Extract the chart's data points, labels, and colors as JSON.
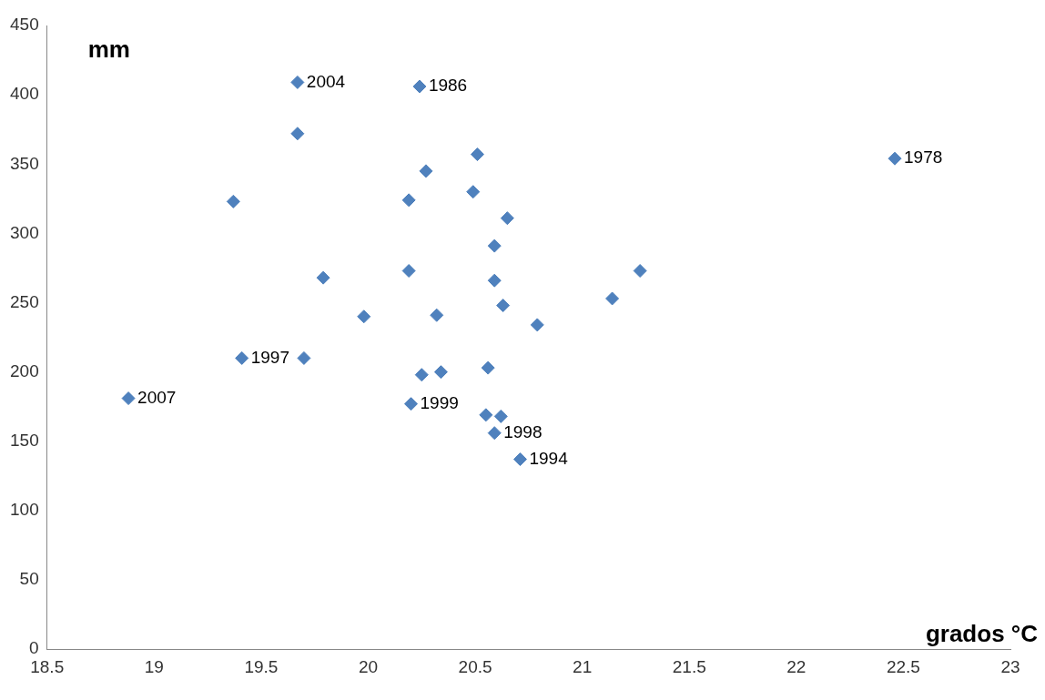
{
  "chart_data": {
    "type": "scatter",
    "xlabel": "grados °C",
    "ylabel": "mm",
    "x": [
      18.88,
      19.37,
      19.41,
      19.67,
      19.67,
      19.7,
      19.79,
      19.98,
      20.19,
      20.19,
      20.2,
      20.24,
      20.25,
      20.27,
      20.32,
      20.34,
      20.49,
      20.51,
      20.55,
      20.56,
      20.59,
      20.59,
      20.59,
      20.62,
      20.63,
      20.65,
      20.71,
      20.79,
      21.14,
      21.27,
      22.46
    ],
    "values": [
      181,
      323,
      210,
      409,
      372,
      210,
      268,
      240,
      273,
      324,
      177,
      406,
      198,
      345,
      241,
      200,
      330,
      357,
      169,
      203,
      291,
      266,
      156,
      168,
      248,
      311,
      137,
      234,
      253,
      273,
      354
    ],
    "color": "#4f81bd",
    "marker": "diamond",
    "grid": false,
    "legend": false,
    "xlim": [
      18.5,
      23
    ],
    "xticks": [
      18.5,
      19,
      19.5,
      20,
      20.5,
      21,
      21.5,
      22,
      22.5,
      23
    ],
    "ylim": [
      0,
      450
    ],
    "yticks": [
      0,
      50,
      100,
      150,
      200,
      250,
      300,
      350,
      400,
      450
    ],
    "annotations": [
      {
        "text": "2007",
        "x": 18.88,
        "y": 181
      },
      {
        "text": "1997",
        "x": 19.41,
        "y": 210
      },
      {
        "text": "2004",
        "x": 19.67,
        "y": 409
      },
      {
        "text": "1986",
        "x": 20.24,
        "y": 406
      },
      {
        "text": "1999",
        "x": 20.2,
        "y": 177
      },
      {
        "text": "1998",
        "x": 20.59,
        "y": 156
      },
      {
        "text": "1994",
        "x": 20.71,
        "y": 137
      },
      {
        "text": "1978",
        "x": 22.46,
        "y": 354
      }
    ]
  }
}
